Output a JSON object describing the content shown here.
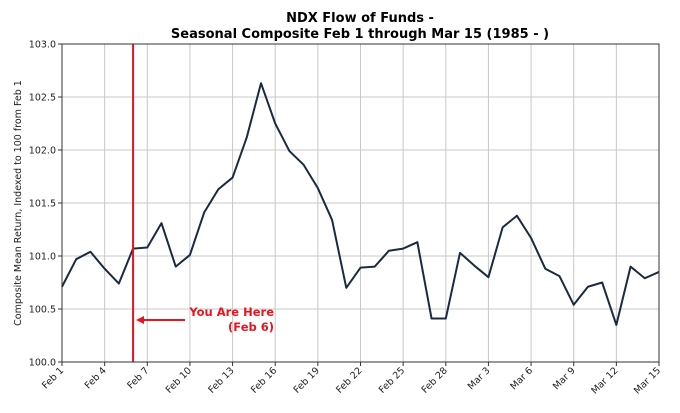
{
  "chart_data": {
    "type": "line",
    "title_lines": [
      "NDX Flow of Funds -",
      "Seasonal Composite Feb 1 through Mar 15 (1985 - )"
    ],
    "xlabel": "",
    "ylabel": "Composite Mean Return, Indexed to 100 from Feb 1",
    "ylim": [
      100.0,
      103.0
    ],
    "yticks": [
      "100.0",
      "100.5",
      "101.0",
      "101.5",
      "102.0",
      "102.5",
      "103.0"
    ],
    "grid": true,
    "x_tick_labels": [
      "Feb 1",
      "Feb 4",
      "Feb 7",
      "Feb 10",
      "Feb 13",
      "Feb 16",
      "Feb 19",
      "Feb 22",
      "Feb 25",
      "Feb 28",
      "Mar 3",
      "Mar 6",
      "Mar 9",
      "Mar 12",
      "Mar 15"
    ],
    "x_days": [
      "Feb 1",
      "Feb 2",
      "Feb 3",
      "Feb 4",
      "Feb 5",
      "Feb 6",
      "Feb 7",
      "Feb 8",
      "Feb 9",
      "Feb 10",
      "Feb 11",
      "Feb 12",
      "Feb 13",
      "Feb 14",
      "Feb 15",
      "Feb 16",
      "Feb 17",
      "Feb 18",
      "Feb 19",
      "Feb 20",
      "Feb 21",
      "Feb 22",
      "Feb 23",
      "Feb 24",
      "Feb 25",
      "Feb 26",
      "Feb 27",
      "Feb 28",
      "Mar 1",
      "Mar 2",
      "Mar 3",
      "Mar 4",
      "Mar 5",
      "Mar 6",
      "Mar 7",
      "Mar 8",
      "Mar 9",
      "Mar 10",
      "Mar 11",
      "Mar 12",
      "Mar 13",
      "Mar 14",
      "Mar 15"
    ],
    "series": [
      {
        "name": "Composite",
        "color": "#1b2a41",
        "values": [
          100.71,
          100.97,
          101.04,
          100.88,
          100.74,
          101.07,
          101.08,
          101.31,
          100.9,
          101.01,
          101.41,
          101.63,
          101.74,
          102.12,
          102.63,
          102.25,
          101.99,
          101.86,
          101.64,
          101.34,
          100.7,
          100.89,
          100.9,
          101.05,
          101.07,
          101.13,
          100.41,
          100.41,
          101.03,
          100.91,
          100.8,
          101.27,
          101.38,
          101.17,
          100.88,
          100.81,
          100.54,
          100.71,
          100.75,
          100.35,
          100.9,
          100.79,
          100.85
        ]
      }
    ],
    "marker": {
      "day_index": 5,
      "color": "#e8141e"
    },
    "annotation": {
      "line1": "You Are Here",
      "line2": "(Feb 6)",
      "color": "#e8141e"
    }
  }
}
